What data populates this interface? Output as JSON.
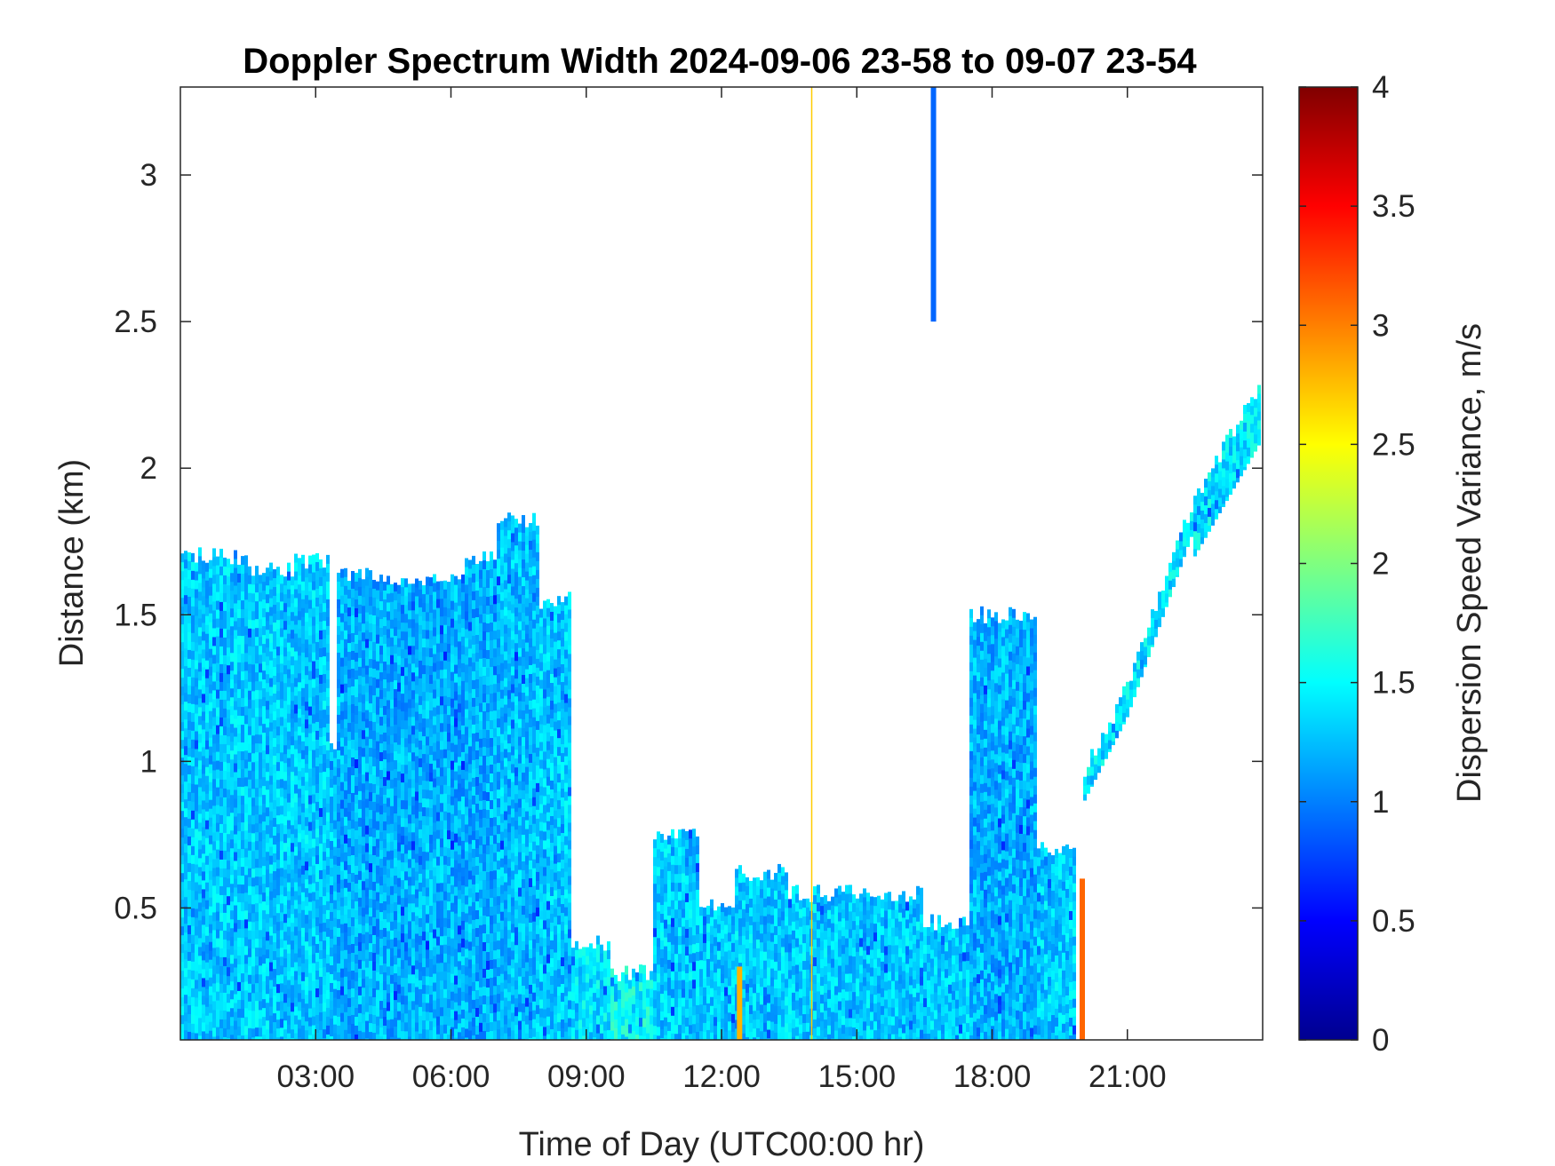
{
  "chart_data": {
    "type": "heatmap",
    "title": "Doppler Spectrum Width 2024-09-06 23-58 to 09-07 23-54",
    "xlabel": "Time of Day (UTC00:00 hr)",
    "ylabel": "Distance (km)",
    "colorbar_label": "Dispersion Speed Variance, m/s",
    "colormap": "jet",
    "xlim_hours": [
      0,
      24
    ],
    "ylim_km": [
      0.05,
      3.3
    ],
    "clim": [
      0,
      4
    ],
    "x_ticks": [
      {
        "value": 3,
        "label": "03:00"
      },
      {
        "value": 6,
        "label": "06:00"
      },
      {
        "value": 9,
        "label": "09:00"
      },
      {
        "value": 12,
        "label": "12:00"
      },
      {
        "value": 15,
        "label": "15:00"
      },
      {
        "value": 18,
        "label": "18:00"
      },
      {
        "value": 21,
        "label": "21:00"
      }
    ],
    "y_ticks": [
      {
        "value": 0.5,
        "label": "0.5"
      },
      {
        "value": 1,
        "label": "1"
      },
      {
        "value": 1.5,
        "label": "1.5"
      },
      {
        "value": 2,
        "label": "2"
      },
      {
        "value": 2.5,
        "label": "2.5"
      },
      {
        "value": 3,
        "label": "3"
      }
    ],
    "colorbar_ticks": [
      {
        "value": 0,
        "label": "0"
      },
      {
        "value": 0.5,
        "label": "0.5"
      },
      {
        "value": 1,
        "label": "1"
      },
      {
        "value": 1.5,
        "label": "1.5"
      },
      {
        "value": 2,
        "label": "2"
      },
      {
        "value": 2.5,
        "label": "2.5"
      },
      {
        "value": 3,
        "label": "3"
      },
      {
        "value": 3.5,
        "label": "3.5"
      },
      {
        "value": 4,
        "label": "4"
      }
    ],
    "typical_value": 1.3,
    "regions": [
      {
        "x0": 0.0,
        "x1": 1.5,
        "ytop": 1.7,
        "value": 1.3
      },
      {
        "x0": 1.5,
        "x1": 2.5,
        "ytop": 1.65,
        "value": 1.3
      },
      {
        "x0": 2.5,
        "x1": 3.3,
        "ytop": 1.68,
        "value": 1.3
      },
      {
        "x0": 3.3,
        "x1": 3.5,
        "ytop": 1.05,
        "value": 1.3
      },
      {
        "x0": 3.5,
        "x1": 5.0,
        "ytop": 1.63,
        "value": 1.2
      },
      {
        "x0": 5.0,
        "x1": 6.3,
        "ytop": 1.62,
        "value": 1.2
      },
      {
        "x0": 6.3,
        "x1": 7.0,
        "ytop": 1.7,
        "value": 1.2
      },
      {
        "x0": 7.0,
        "x1": 8.0,
        "ytop": 1.82,
        "value": 1.25
      },
      {
        "x0": 8.0,
        "x1": 8.7,
        "ytop": 1.55,
        "value": 1.3
      },
      {
        "x0": 8.7,
        "x1": 9.5,
        "ytop": 0.38,
        "value": 1.4
      },
      {
        "x0": 9.5,
        "x1": 10.5,
        "ytop": 0.28,
        "value": 1.5
      },
      {
        "x0": 10.5,
        "x1": 11.5,
        "ytop": 0.75,
        "value": 1.3
      },
      {
        "x0": 11.5,
        "x1": 12.3,
        "ytop": 0.5,
        "value": 1.3
      },
      {
        "x0": 12.3,
        "x1": 13.5,
        "ytop": 0.62,
        "value": 1.3
      },
      {
        "x0": 13.5,
        "x1": 16.5,
        "ytop": 0.55,
        "value": 1.3
      },
      {
        "x0": 16.5,
        "x1": 17.5,
        "ytop": 0.45,
        "value": 1.3
      },
      {
        "x0": 17.5,
        "x1": 19.0,
        "ytop": 1.5,
        "value": 1.2
      },
      {
        "x0": 19.0,
        "x1": 19.9,
        "ytop": 0.7,
        "value": 1.3
      },
      {
        "x0": 20.0,
        "x1": 21.0,
        "ytop_start": 0.95,
        "ytop_end": 1.25,
        "thickness": 0.1,
        "value": 1.4
      },
      {
        "x0": 21.0,
        "x1": 22.5,
        "ytop_start": 1.25,
        "ytop_end": 1.9,
        "thickness": 0.1,
        "value": 1.4
      },
      {
        "x0": 22.5,
        "x1": 24.0,
        "ytop_start": 1.9,
        "ytop_end": 2.3,
        "thickness": 0.2,
        "value": 1.4
      }
    ],
    "features": [
      {
        "x": 16.7,
        "y0": 2.5,
        "y1": 3.3,
        "value": 0.9
      },
      {
        "x": 20.0,
        "y0": 0.05,
        "y1": 0.6,
        "value": 3.1
      },
      {
        "x": 12.4,
        "y0": 0.05,
        "y1": 0.3,
        "value": 2.8
      },
      {
        "x": 14.0,
        "y0": 0.05,
        "y1": 3.3,
        "value": 2.7
      }
    ]
  }
}
